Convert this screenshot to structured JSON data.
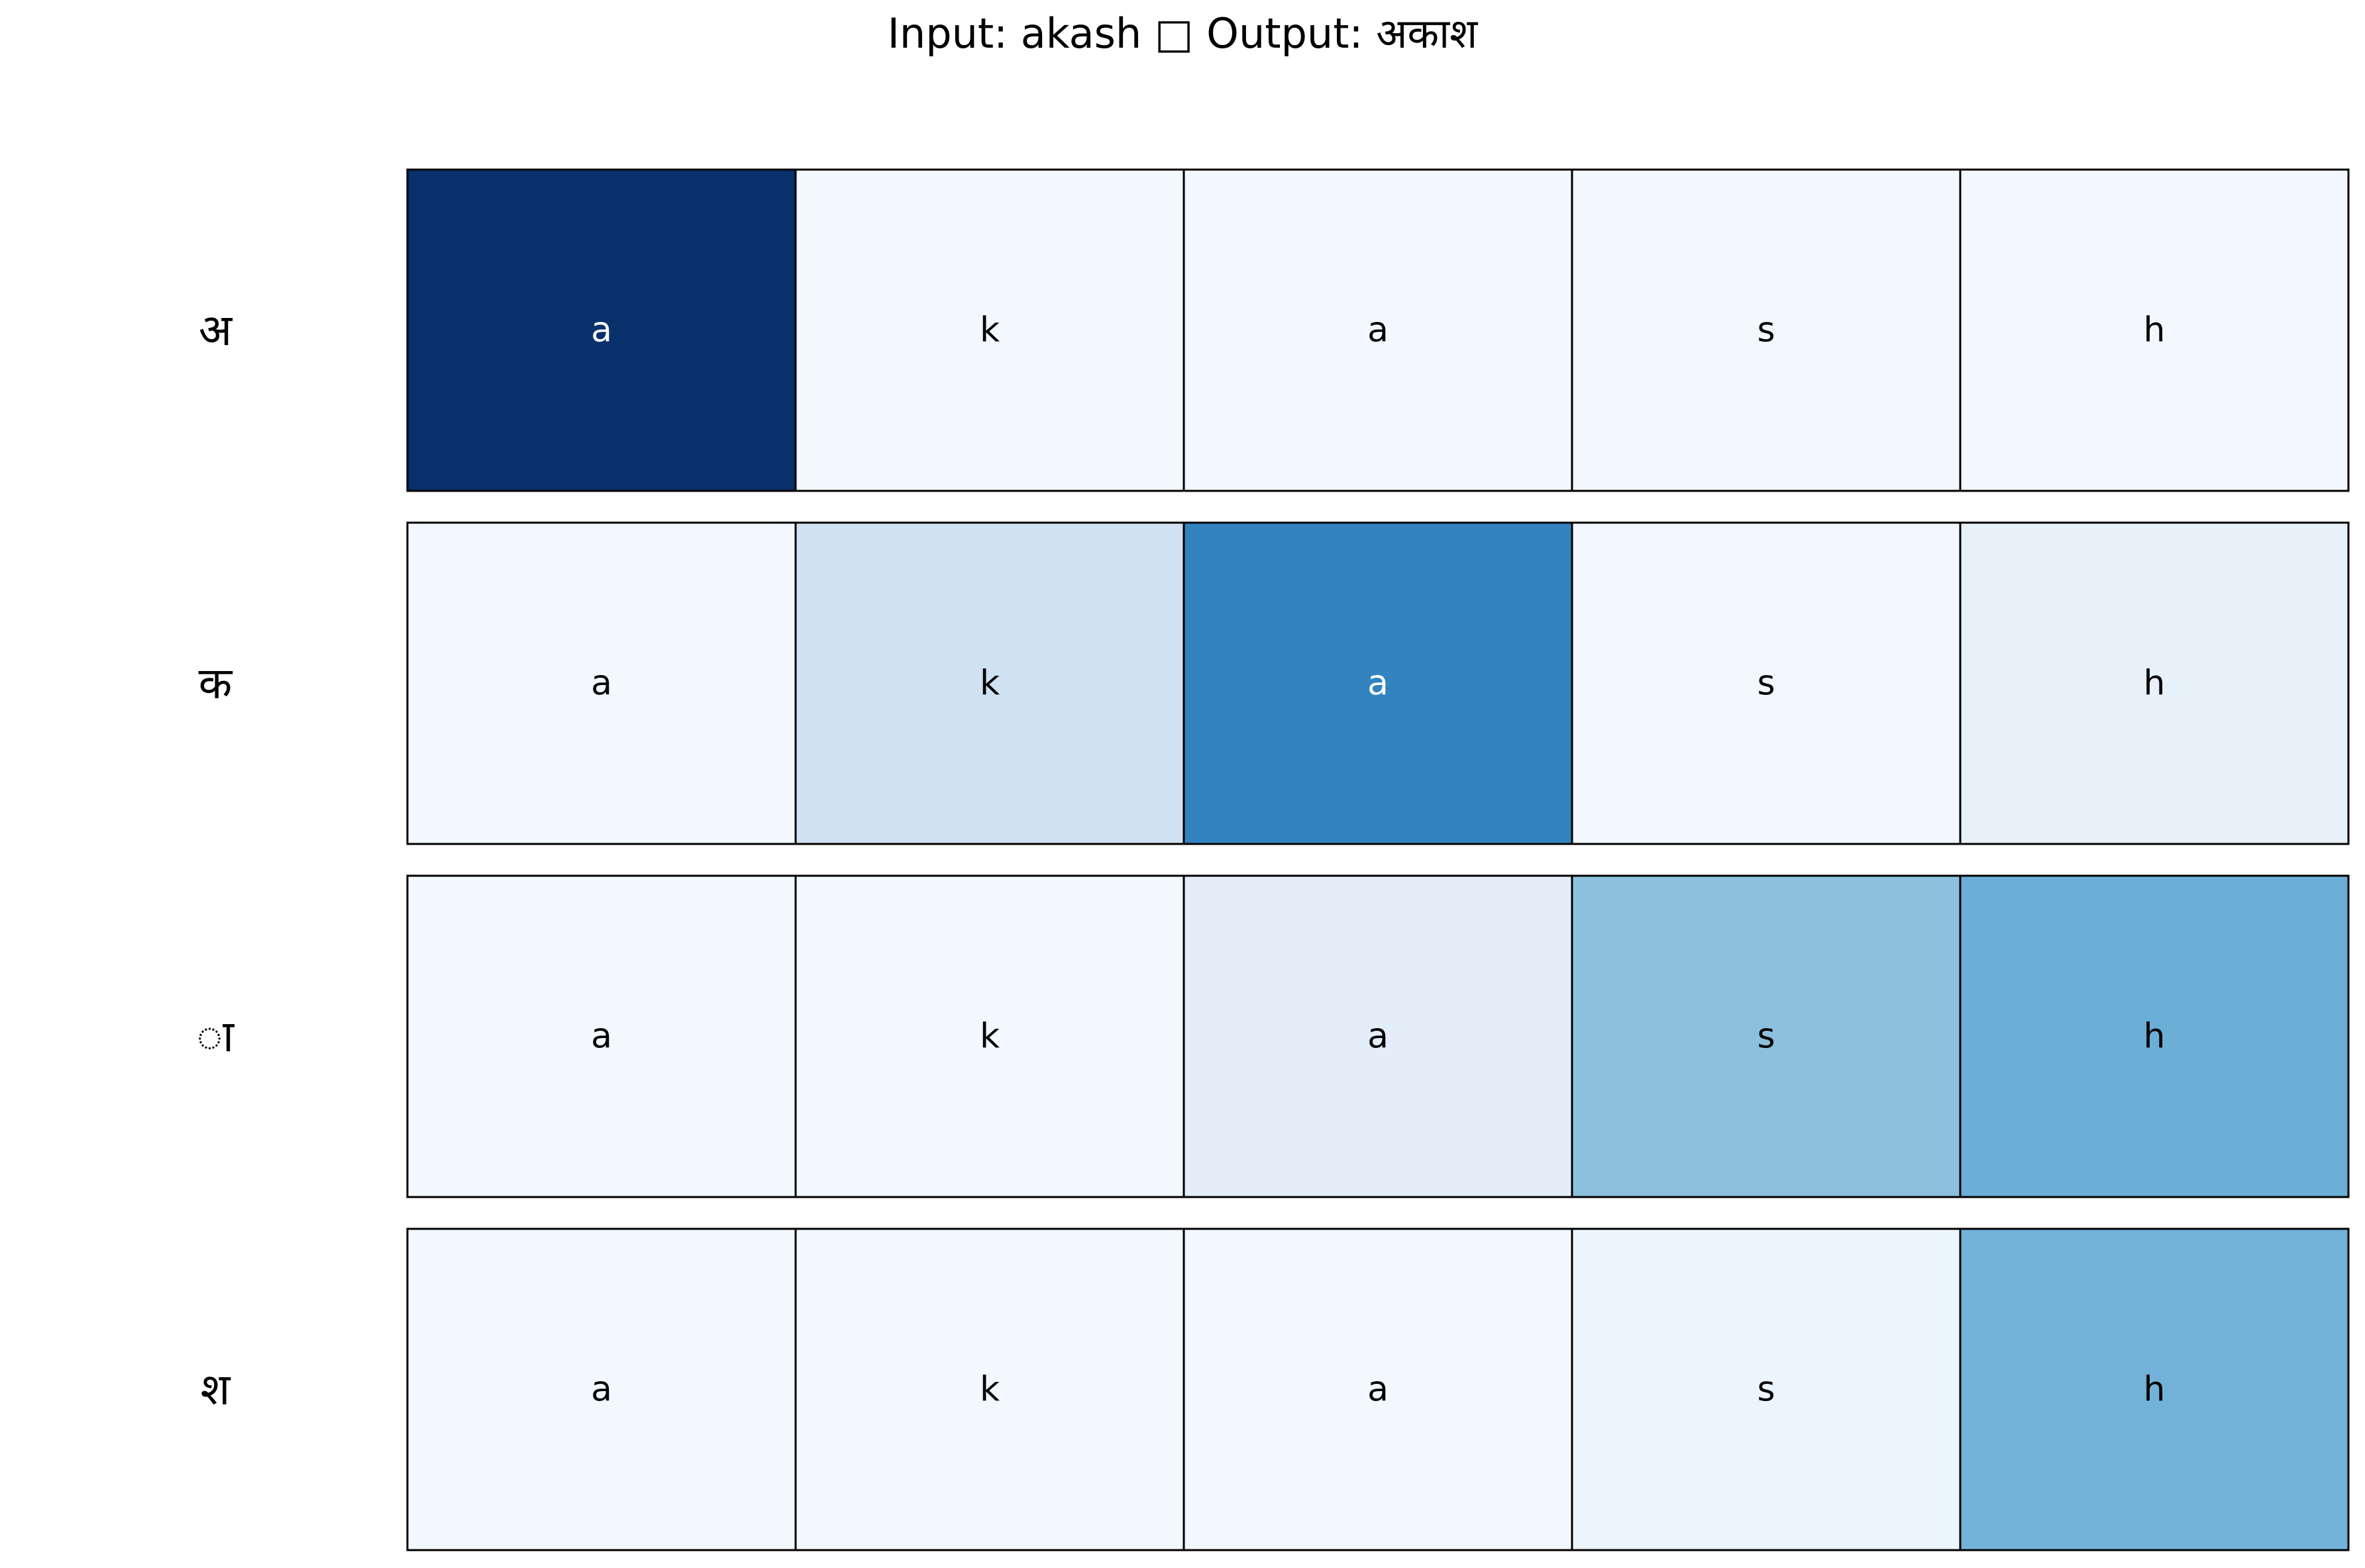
{
  "chart_data": {
    "type": "heatmap",
    "title": "Input: akash □ Output: अकाश",
    "input_chars": [
      "a",
      "k",
      "a",
      "s",
      "h"
    ],
    "output_chars": [
      "अ",
      "क",
      "ा",
      "श"
    ],
    "values": [
      [
        1.0,
        0.02,
        0.02,
        0.02,
        0.02
      ],
      [
        0.02,
        0.2,
        0.68,
        0.03,
        0.08
      ],
      [
        0.02,
        0.02,
        0.1,
        0.42,
        0.5
      ],
      [
        0.02,
        0.02,
        0.02,
        0.05,
        0.48
      ]
    ],
    "colormap": "Blues",
    "vmin": 0,
    "vmax": 1,
    "grid": false,
    "cell_border_color": "#000000"
  }
}
